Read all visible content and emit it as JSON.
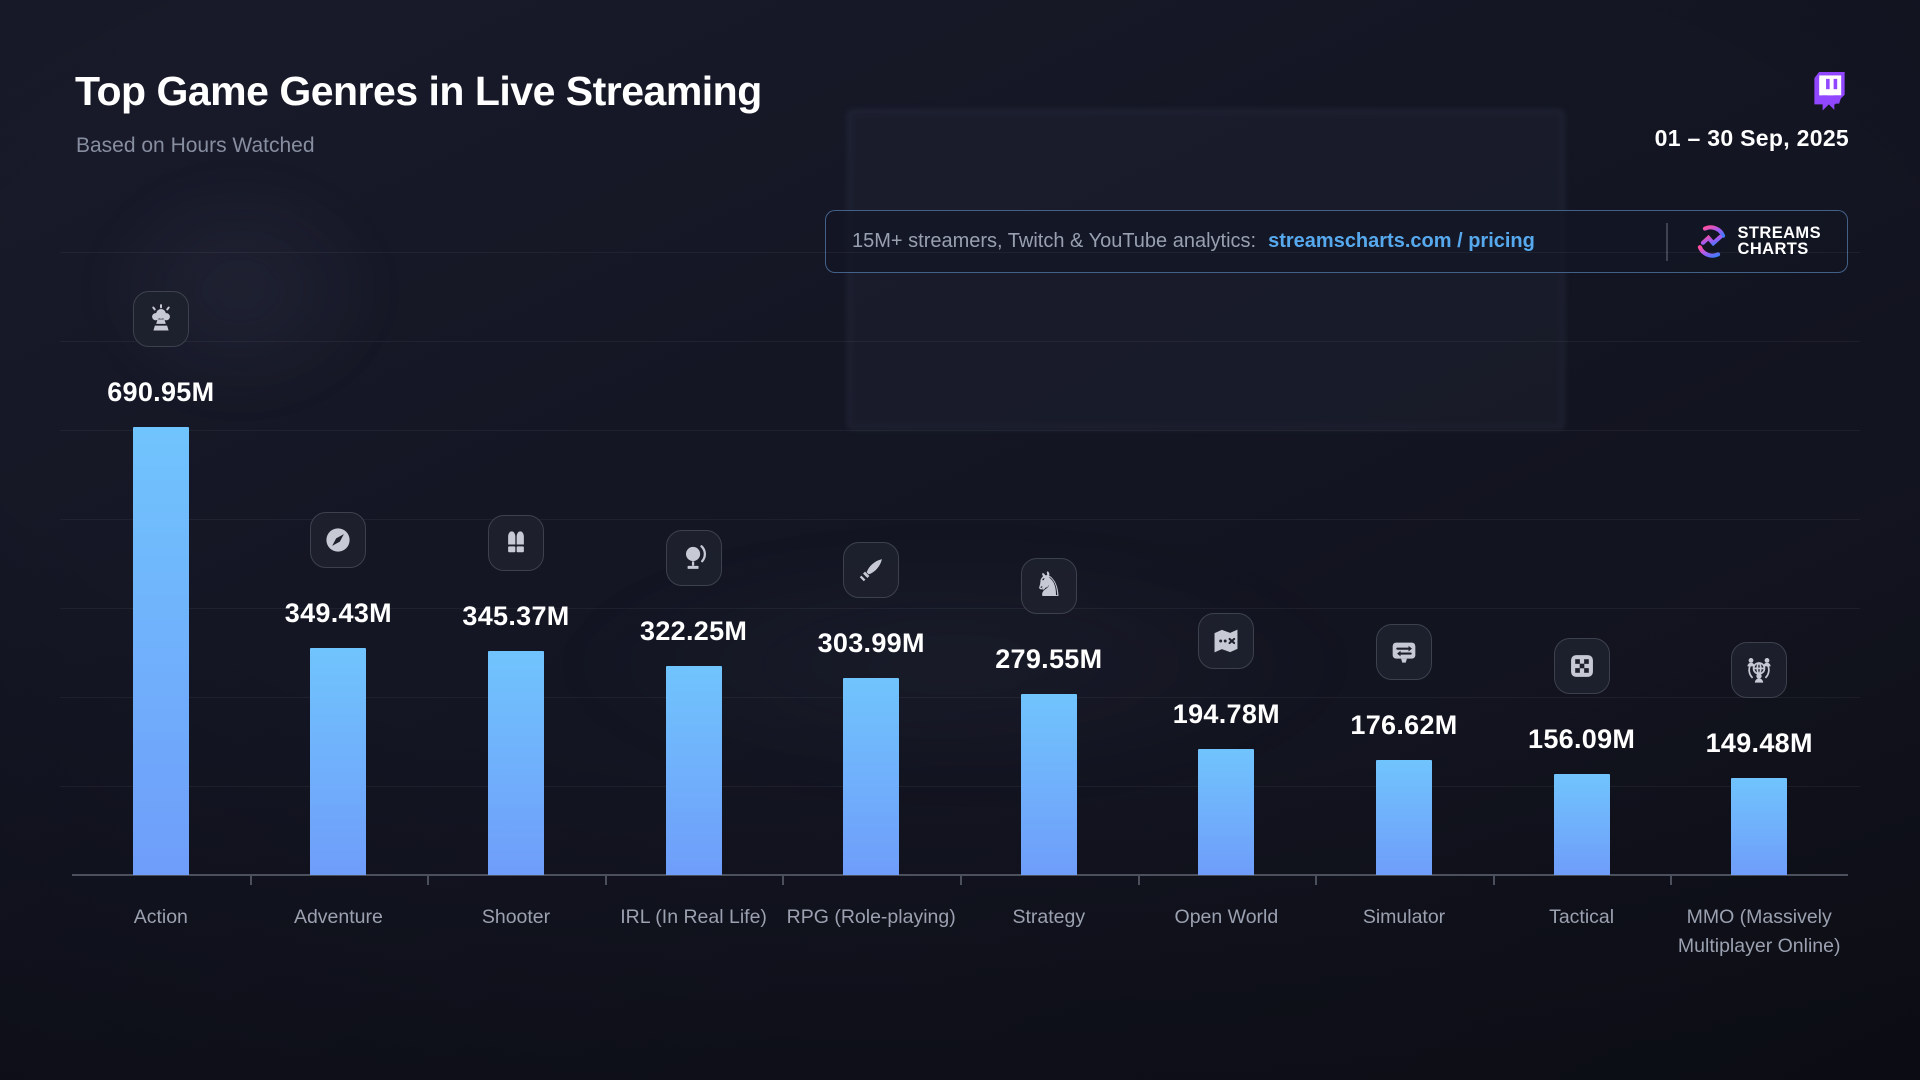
{
  "header": {
    "title": "Top Game Genres in Live Streaming",
    "subtitle": "Based on Hours Watched",
    "date_range": "01 – 30 Sep, 2025"
  },
  "promo": {
    "text": "15M+ streamers, Twitch & YouTube analytics:",
    "link": "streamscharts.com / pricing",
    "brand_line1": "STREAMS",
    "brand_line2": "CHARTS"
  },
  "colors": {
    "background": "#131522",
    "bar_gradient_top": "#70c4fd",
    "bar_gradient_bottom": "#6f9dfa",
    "link_blue": "#57a9ee",
    "twitch_purple": "#9146ff",
    "icon_glyph": "#c7cad4",
    "icon_badge_bg": "#1e212c",
    "brand_gradient": [
      "#ff4fa0",
      "#9b5cf6",
      "#3f7bfb"
    ],
    "axis": "#4c505c",
    "category_label": "#9ba1b0",
    "subtitle_gray": "#878ea0"
  },
  "chart_data": {
    "type": "bar",
    "title": "Top Game Genres in Live Streaming",
    "subtitle": "Based on Hours Watched",
    "period": "01 – 30 Sep, 2025",
    "unit": "hours watched (millions)",
    "ylim": [
      0,
      700
    ],
    "grid": "faint horizontal lines",
    "legend": "none",
    "categories": [
      "Action",
      "Adventure",
      "Shooter",
      "IRL (In Real Life)",
      "RPG (Role-playing)",
      "Strategy",
      "Open World",
      "Simulator",
      "Tactical",
      "MMO (Massively Multiplayer Online)"
    ],
    "values": [
      690.95,
      349.43,
      345.37,
      322.25,
      303.99,
      279.55,
      194.78,
      176.62,
      156.09,
      149.48
    ],
    "labels": [
      "690.95M",
      "349.43M",
      "345.37M",
      "322.25M",
      "303.99M",
      "279.55M",
      "194.78M",
      "176.62M",
      "156.09M",
      "149.48M"
    ],
    "icons": [
      "explosion",
      "compass",
      "bullets",
      "globe-stand",
      "sword",
      "chess-knight",
      "treasure-map",
      "control-panel",
      "board-squares",
      "globe-people"
    ]
  }
}
